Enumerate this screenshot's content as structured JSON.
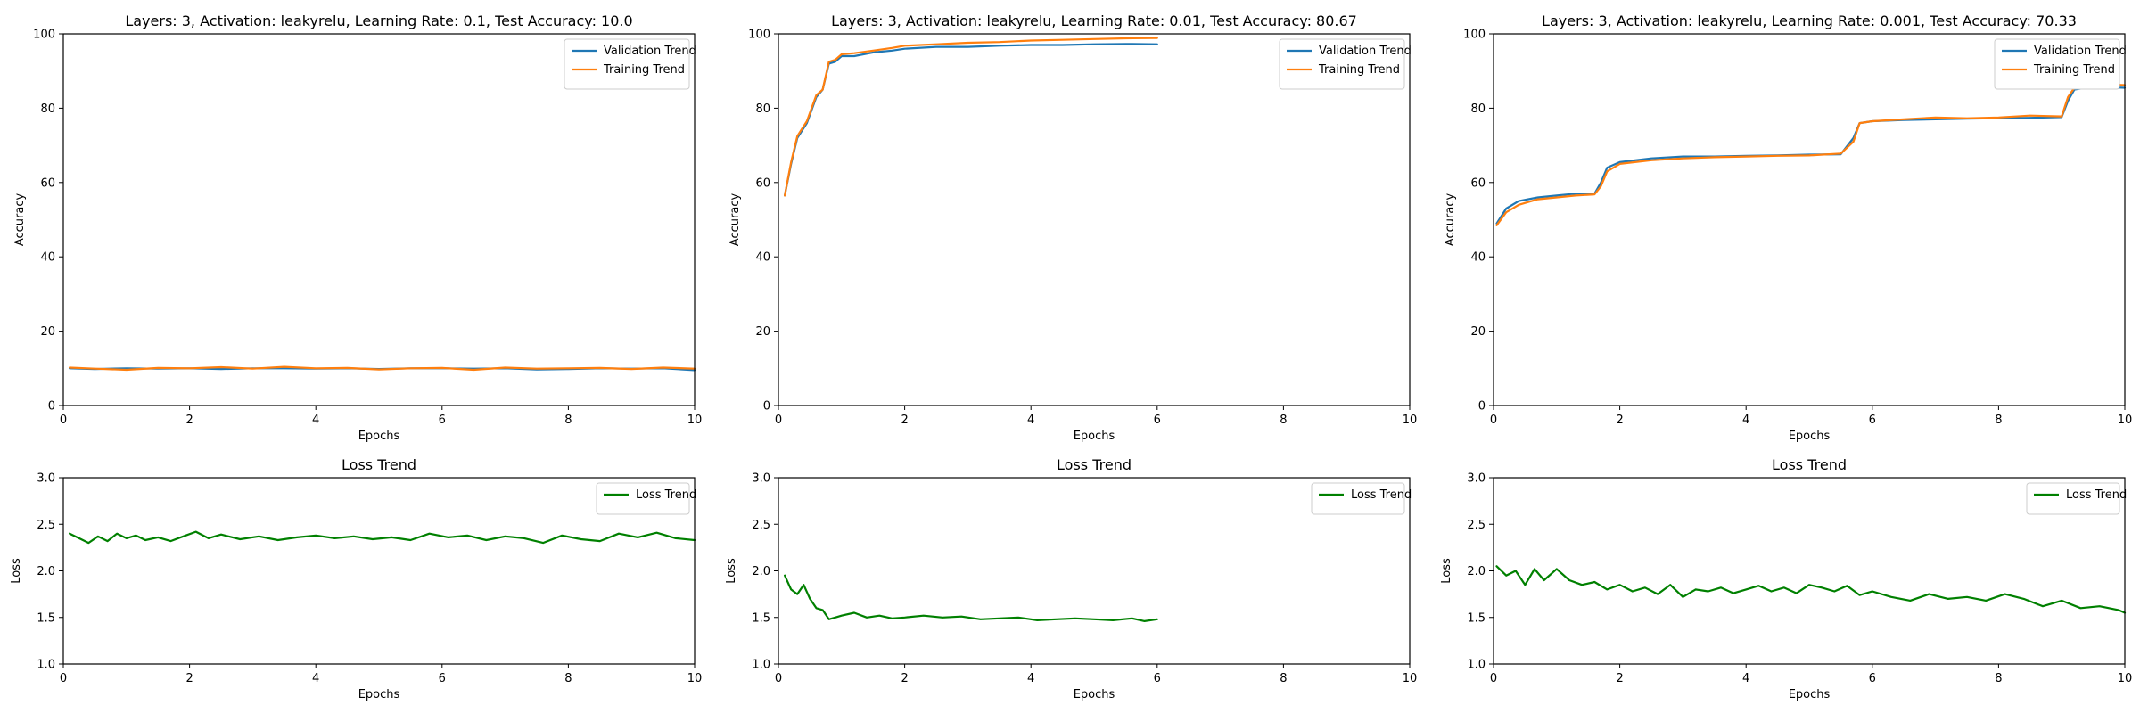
{
  "colors": {
    "validation": "#1f77b4",
    "training": "#ff7f0e",
    "loss": "#008000"
  },
  "chart_data": [
    {
      "type": "line",
      "title": "Layers: 3, Activation: leakyrelu, Learning Rate: 0.1, Test Accuracy: 10.0",
      "xlabel": "Epochs",
      "ylabel": "Accuracy",
      "xlim": [
        0,
        10
      ],
      "ylim": [
        0,
        100
      ],
      "xticks": [
        "0",
        "2",
        "4",
        "6",
        "8",
        "10"
      ],
      "yticks": [
        "0",
        "20",
        "40",
        "60",
        "80",
        "100"
      ],
      "legend": "top-right",
      "series": [
        {
          "name": "Validation Trend",
          "color": "#1f77b4",
          "x": [
            0.1,
            0.5,
            1,
            1.5,
            2,
            2.5,
            3,
            3.5,
            4,
            4.5,
            5,
            5.5,
            6,
            6.5,
            7,
            7.5,
            8,
            8.5,
            9,
            9.5,
            10
          ],
          "y": [
            10,
            9.8,
            10,
            9.9,
            10,
            9.8,
            10,
            10,
            9.9,
            10,
            9.8,
            10,
            10,
            9.9,
            10,
            9.7,
            9.8,
            10,
            9.9,
            10,
            9.5
          ]
        },
        {
          "name": "Training Trend",
          "color": "#ff7f0e",
          "x": [
            0.1,
            0.5,
            1,
            1.5,
            2,
            2.5,
            3,
            3.5,
            4,
            4.5,
            5,
            5.5,
            6,
            6.5,
            7,
            7.5,
            8,
            8.5,
            9,
            9.5,
            10
          ],
          "y": [
            10.2,
            9.9,
            9.6,
            10.1,
            10,
            10.3,
            9.9,
            10.4,
            10,
            10.1,
            9.7,
            10,
            10.1,
            9.6,
            10.2,
            9.9,
            10,
            10.1,
            9.8,
            10.2,
            9.9
          ]
        }
      ]
    },
    {
      "type": "line",
      "title": "Layers: 3, Activation: leakyrelu, Learning Rate: 0.01, Test Accuracy: 80.67",
      "xlabel": "Epochs",
      "ylabel": "Accuracy",
      "xlim": [
        0,
        10
      ],
      "ylim": [
        0,
        100
      ],
      "xticks": [
        "0",
        "2",
        "4",
        "6",
        "8",
        "10"
      ],
      "yticks": [
        "0",
        "20",
        "40",
        "60",
        "80",
        "100"
      ],
      "legend": "top-right",
      "series": [
        {
          "name": "Validation Trend",
          "color": "#1f77b4",
          "x": [
            0.1,
            0.2,
            0.3,
            0.45,
            0.6,
            0.7,
            0.8,
            0.9,
            1,
            1.2,
            1.5,
            1.8,
            2,
            2.5,
            3,
            3.5,
            4,
            4.5,
            5,
            5.5,
            6
          ],
          "y": [
            56.5,
            65,
            72,
            76,
            83,
            85,
            92,
            92.5,
            94,
            94,
            95,
            95.5,
            96,
            96.5,
            96.5,
            96.8,
            97,
            97,
            97.2,
            97.3,
            97.2
          ]
        },
        {
          "name": "Training Trend",
          "color": "#ff7f0e",
          "x": [
            0.1,
            0.2,
            0.3,
            0.45,
            0.6,
            0.7,
            0.8,
            0.9,
            1,
            1.2,
            1.5,
            1.8,
            2,
            2.5,
            3,
            3.5,
            4,
            4.5,
            5,
            5.5,
            6
          ],
          "y": [
            56.5,
            65.5,
            72.5,
            76.5,
            83.5,
            85,
            92.5,
            93,
            94.5,
            94.8,
            95.5,
            96.2,
            96.8,
            97.2,
            97.6,
            97.8,
            98.2,
            98.4,
            98.6,
            98.8,
            98.9
          ]
        }
      ]
    },
    {
      "type": "line",
      "title": "Layers: 3, Activation: leakyrelu, Learning Rate: 0.001, Test Accuracy: 70.33",
      "xlabel": "Epochs",
      "ylabel": "Accuracy",
      "xlim": [
        0,
        10
      ],
      "ylim": [
        0,
        100
      ],
      "xticks": [
        "0",
        "2",
        "4",
        "6",
        "8",
        "10"
      ],
      "yticks": [
        "0",
        "20",
        "40",
        "60",
        "80",
        "100"
      ],
      "legend": "top-right",
      "series": [
        {
          "name": "Validation Trend",
          "color": "#1f77b4",
          "x": [
            0.05,
            0.2,
            0.4,
            0.7,
            1,
            1.3,
            1.6,
            1.7,
            1.8,
            2,
            2.5,
            3,
            3.5,
            4,
            4.5,
            5,
            5.5,
            5.7,
            5.8,
            6,
            6.5,
            7,
            7.5,
            8,
            8.5,
            9,
            9.1,
            9.2,
            9.5,
            10
          ],
          "y": [
            49,
            53,
            55,
            56,
            56.5,
            57,
            57,
            60,
            64,
            65.5,
            66.5,
            67,
            67,
            67.2,
            67.3,
            67.5,
            67.6,
            72,
            76,
            76.5,
            76.8,
            77,
            77.2,
            77.3,
            77.4,
            77.6,
            82,
            85,
            85.8,
            85.5
          ]
        },
        {
          "name": "Training Trend",
          "color": "#ff7f0e",
          "x": [
            0.05,
            0.2,
            0.4,
            0.7,
            1,
            1.3,
            1.6,
            1.7,
            1.8,
            2,
            2.5,
            3,
            3.5,
            4,
            4.5,
            5,
            5.5,
            5.7,
            5.8,
            6,
            6.5,
            7,
            7.5,
            8,
            8.5,
            9,
            9.1,
            9.2,
            9.5,
            10
          ],
          "y": [
            48.5,
            52,
            54,
            55.5,
            56,
            56.5,
            56.8,
            59,
            63,
            65,
            66,
            66.5,
            66.8,
            67,
            67.2,
            67.3,
            67.8,
            71,
            76,
            76.5,
            77,
            77.5,
            77.3,
            77.5,
            78,
            77.8,
            83,
            85.5,
            86.5,
            86.2
          ]
        }
      ]
    },
    {
      "type": "line",
      "title": "Loss Trend",
      "xlabel": "Epochs",
      "ylabel": "Loss",
      "xlim": [
        0,
        10
      ],
      "ylim": [
        1.0,
        3.0
      ],
      "xticks": [
        "0",
        "2",
        "4",
        "6",
        "8",
        "10"
      ],
      "yticks": [
        "1.0",
        "1.5",
        "2.0",
        "2.5",
        "3.0"
      ],
      "legend": "top-right",
      "series": [
        {
          "name": "Loss Trend",
          "color": "#008000",
          "x": [
            0.1,
            0.25,
            0.4,
            0.55,
            0.7,
            0.85,
            1,
            1.15,
            1.3,
            1.5,
            1.7,
            1.9,
            2.1,
            2.3,
            2.5,
            2.8,
            3.1,
            3.4,
            3.7,
            4,
            4.3,
            4.6,
            4.9,
            5.2,
            5.5,
            5.8,
            6.1,
            6.4,
            6.7,
            7,
            7.3,
            7.6,
            7.9,
            8.2,
            8.5,
            8.8,
            9.1,
            9.4,
            9.7,
            10
          ],
          "y": [
            2.4,
            2.35,
            2.3,
            2.37,
            2.32,
            2.4,
            2.35,
            2.38,
            2.33,
            2.36,
            2.32,
            2.37,
            2.42,
            2.35,
            2.39,
            2.34,
            2.37,
            2.33,
            2.36,
            2.38,
            2.35,
            2.37,
            2.34,
            2.36,
            2.33,
            2.4,
            2.36,
            2.38,
            2.33,
            2.37,
            2.35,
            2.3,
            2.38,
            2.34,
            2.32,
            2.4,
            2.36,
            2.41,
            2.35,
            2.33
          ]
        }
      ]
    },
    {
      "type": "line",
      "title": "Loss Trend",
      "xlabel": "Epochs",
      "ylabel": "Loss",
      "xlim": [
        0,
        10
      ],
      "ylim": [
        1.0,
        3.0
      ],
      "xticks": [
        "0",
        "2",
        "4",
        "6",
        "8",
        "10"
      ],
      "yticks": [
        "1.0",
        "1.5",
        "2.0",
        "2.5",
        "3.0"
      ],
      "legend": "top-right",
      "series": [
        {
          "name": "Loss Trend",
          "color": "#008000",
          "x": [
            0.1,
            0.2,
            0.3,
            0.4,
            0.5,
            0.6,
            0.7,
            0.8,
            0.9,
            1,
            1.2,
            1.4,
            1.6,
            1.8,
            2,
            2.3,
            2.6,
            2.9,
            3.2,
            3.5,
            3.8,
            4.1,
            4.4,
            4.7,
            5,
            5.3,
            5.6,
            5.8,
            6
          ],
          "y": [
            1.95,
            1.8,
            1.75,
            1.85,
            1.7,
            1.6,
            1.58,
            1.48,
            1.5,
            1.52,
            1.55,
            1.5,
            1.52,
            1.49,
            1.5,
            1.52,
            1.5,
            1.51,
            1.48,
            1.49,
            1.5,
            1.47,
            1.48,
            1.49,
            1.48,
            1.47,
            1.49,
            1.46,
            1.48
          ]
        }
      ]
    },
    {
      "type": "line",
      "title": "Loss Trend",
      "xlabel": "Epochs",
      "ylabel": "Loss",
      "xlim": [
        0,
        10
      ],
      "ylim": [
        1.0,
        3.0
      ],
      "xticks": [
        "0",
        "2",
        "4",
        "6",
        "8",
        "10"
      ],
      "yticks": [
        "1.0",
        "1.5",
        "2.0",
        "2.5",
        "3.0"
      ],
      "legend": "top-right",
      "series": [
        {
          "name": "Loss Trend",
          "color": "#008000",
          "x": [
            0.05,
            0.2,
            0.35,
            0.5,
            0.65,
            0.8,
            1,
            1.2,
            1.4,
            1.6,
            1.8,
            2,
            2.2,
            2.4,
            2.6,
            2.8,
            3,
            3.2,
            3.4,
            3.6,
            3.8,
            4,
            4.2,
            4.4,
            4.6,
            4.8,
            5,
            5.2,
            5.4,
            5.6,
            5.8,
            6,
            6.3,
            6.6,
            6.9,
            7.2,
            7.5,
            7.8,
            8.1,
            8.4,
            8.7,
            9,
            9.3,
            9.6,
            9.9,
            10
          ],
          "y": [
            2.05,
            1.95,
            2.0,
            1.85,
            2.02,
            1.9,
            2.02,
            1.9,
            1.85,
            1.88,
            1.8,
            1.85,
            1.78,
            1.82,
            1.75,
            1.85,
            1.72,
            1.8,
            1.78,
            1.82,
            1.76,
            1.8,
            1.84,
            1.78,
            1.82,
            1.76,
            1.85,
            1.82,
            1.78,
            1.84,
            1.74,
            1.78,
            1.72,
            1.68,
            1.75,
            1.7,
            1.72,
            1.68,
            1.75,
            1.7,
            1.62,
            1.68,
            1.6,
            1.62,
            1.58,
            1.55
          ]
        }
      ]
    }
  ]
}
